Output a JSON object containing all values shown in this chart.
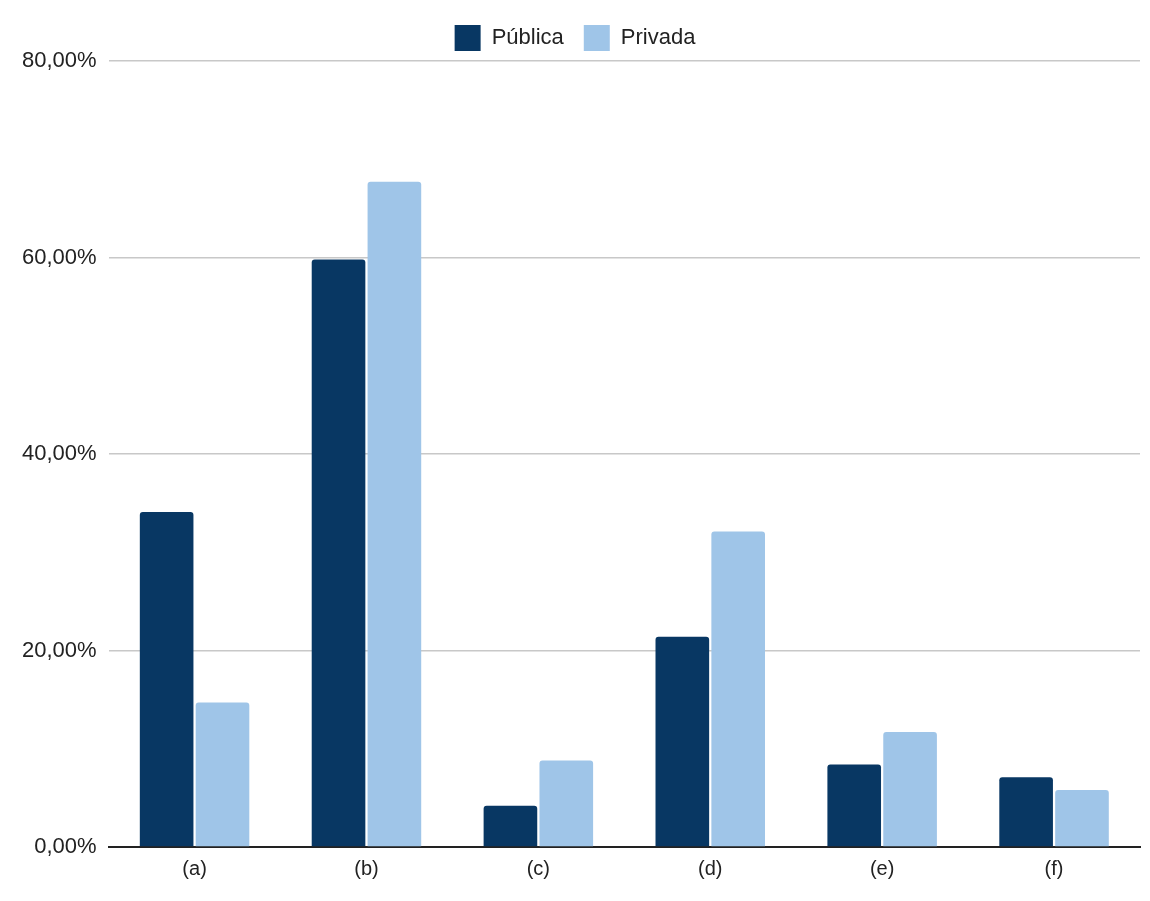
{
  "chart_data": {
    "type": "bar",
    "categories": [
      "(a)",
      "(b)",
      "(c)",
      "(d)",
      "(e)",
      "(f)"
    ],
    "series": [
      {
        "name": "Pública",
        "color": "#083763",
        "values": [
          34.1,
          59.8,
          4.2,
          21.4,
          8.4,
          7.1
        ]
      },
      {
        "name": "Privada",
        "color": "#9fc5e8",
        "values": [
          14.7,
          67.7,
          8.8,
          32.1,
          11.7,
          5.8
        ]
      }
    ],
    "ylim": [
      0,
      80
    ],
    "yticks": [
      {
        "value": 0,
        "label": "0,00%"
      },
      {
        "value": 20,
        "label": "20,00%"
      },
      {
        "value": 40,
        "label": "40,00%"
      },
      {
        "value": 60,
        "label": "60,00%"
      },
      {
        "value": 80,
        "label": "80,00%"
      }
    ],
    "grid": "y",
    "legend": "top"
  }
}
